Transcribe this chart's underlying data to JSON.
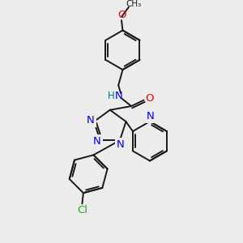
{
  "bg_color": "#ececec",
  "fig_size": [
    3.0,
    3.0
  ],
  "dpi": 100,
  "bond_color": "#1a1a1a",
  "N_color": "#0000ee",
  "O_color": "#ee0000",
  "Cl_color": "#22aa22",
  "H_color": "#007777",
  "lw": 1.4,
  "font_size": 8.0,
  "xlim": [
    0,
    10
  ],
  "ylim": [
    0,
    10
  ]
}
